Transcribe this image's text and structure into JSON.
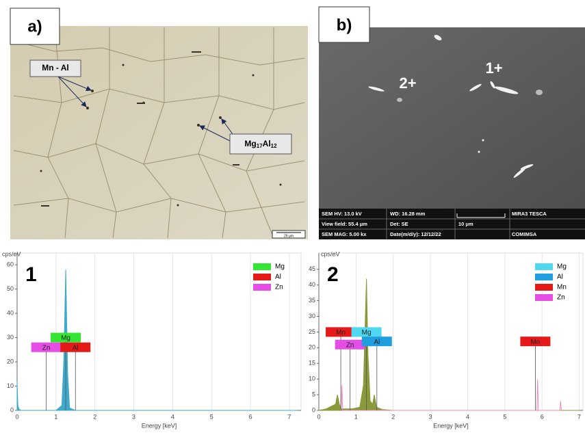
{
  "panel_a": {
    "label": "a)",
    "annotations": [
      "Mn - Al"
    ],
    "phase_label_parts": [
      "Mg",
      "17",
      "Al",
      "12"
    ],
    "scale_bar": "25 μm"
  },
  "panel_b": {
    "label": "b)",
    "points": [
      "2+",
      "1+"
    ],
    "info": [
      "SEM HV: 13.0 kV",
      "WD: 16.28 mm",
      "MIRA3 TESCA",
      "View field: 55.4 μm",
      "Det: SE",
      "10 μm",
      "SEM MAG: 5.00 kx",
      "Date(m/d/y): 12/12/22",
      "COMIMSA"
    ]
  },
  "chart_data": [
    {
      "type": "area",
      "title": "1",
      "y_label": "cps/eV",
      "x_label": "Energy [keV]",
      "xlim": [
        0,
        7.3
      ],
      "xticks": [
        0,
        1,
        2,
        3,
        4,
        5,
        6,
        7
      ],
      "ylim": [
        0,
        62
      ],
      "yticks": [
        0,
        10,
        20,
        30,
        40,
        50,
        60
      ],
      "grid": true,
      "series": [
        {
          "color": "#3fa9c9",
          "fill": true,
          "x": [
            0,
            0.02,
            0.05,
            0.1,
            0.5,
            1.0,
            1.15,
            1.2,
            1.25,
            1.3,
            1.35,
            1.5,
            2,
            3,
            7.2
          ],
          "values": [
            12,
            2,
            0.5,
            0,
            0,
            0,
            2,
            20,
            58,
            15,
            1,
            0,
            0,
            0,
            0
          ]
        }
      ],
      "legend": [
        {
          "label": "Mg",
          "color": "#33e633"
        },
        {
          "label": "Al",
          "color": "#e61919"
        },
        {
          "label": "Zn",
          "color": "#e64ce6"
        }
      ],
      "element_markers": [
        {
          "label": "Mg",
          "color": "#33e633",
          "x": 1.25,
          "y": 30
        },
        {
          "label": "Zn",
          "color": "#e64ce6",
          "x": 0.75,
          "y": 26
        },
        {
          "label": "Al",
          "color": "#e61919",
          "x": 1.5,
          "y": 26
        }
      ]
    },
    {
      "type": "area",
      "title": "2",
      "y_label": "cps/eV",
      "x_label": "Energy [keV]",
      "xlim": [
        0,
        7.1
      ],
      "xticks": [
        0,
        1,
        2,
        3,
        4,
        5,
        6,
        7
      ],
      "ylim": [
        0,
        48
      ],
      "yticks": [
        0,
        5,
        10,
        15,
        20,
        25,
        30,
        35,
        40,
        45
      ],
      "grid": true,
      "series": [
        {
          "color": "#8a9a3a",
          "fill": true,
          "x": [
            0,
            0.2,
            0.45,
            0.5,
            0.55,
            0.6,
            0.9,
            1.1,
            1.2,
            1.25,
            1.28,
            1.32,
            1.38,
            1.45,
            1.49,
            1.55,
            1.7,
            2,
            7
          ],
          "values": [
            0,
            0.5,
            2,
            5,
            2,
            0.5,
            0.5,
            1,
            8,
            30,
            42,
            18,
            3,
            2,
            5,
            1,
            0.3,
            0,
            0
          ]
        },
        {
          "color": "#f08ab8",
          "fill": false,
          "x": [
            0.6,
            0.62,
            0.64,
            5.86,
            5.88,
            5.9,
            6.48,
            6.5,
            6.52
          ],
          "values": [
            0,
            8,
            0,
            0,
            10,
            0,
            0,
            3,
            0
          ]
        }
      ],
      "legend": [
        {
          "label": "Mg",
          "color": "#4fd8ef"
        },
        {
          "label": "Al",
          "color": "#1f9ee0"
        },
        {
          "label": "Mn",
          "color": "#e61919"
        },
        {
          "label": "Zn",
          "color": "#e64ce6"
        }
      ],
      "element_markers": [
        {
          "label": "Mn",
          "color": "#e61919",
          "x": 0.59,
          "y": 25
        },
        {
          "label": "Mg",
          "color": "#4fd8ef",
          "x": 1.28,
          "y": 25
        },
        {
          "label": "Zn",
          "color": "#e64ce6",
          "x": 0.84,
          "y": 21
        },
        {
          "label": "Al",
          "color": "#1f9ee0",
          "x": 1.56,
          "y": 22
        },
        {
          "label": "Mn",
          "color": "#e61919",
          "x": 5.82,
          "y": 22
        }
      ]
    }
  ]
}
